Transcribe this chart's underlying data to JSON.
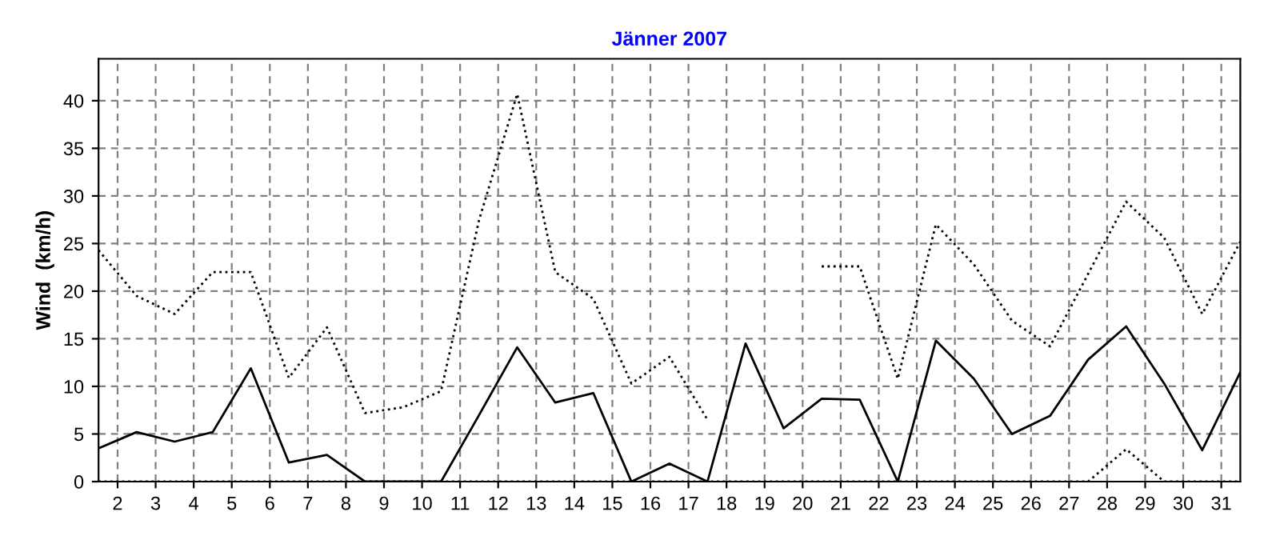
{
  "chart_data": {
    "type": "line",
    "title": "Jänner 2007",
    "ylabel": "Wind  (km/h)",
    "x": [
      1.5,
      2.5,
      3.5,
      4.5,
      5.5,
      6.5,
      7.5,
      8.5,
      9.5,
      10.5,
      11.5,
      12.5,
      13.5,
      14.5,
      15.5,
      16.5,
      17.5,
      18.5,
      19.5,
      20.5,
      21.5,
      22.5,
      23.5,
      24.5,
      25.5,
      26.5,
      27.5,
      28.5,
      29.5,
      30.5,
      31.5
    ],
    "series": [
      {
        "color": "#000000",
        "line_style": "dotted",
        "values": [
          24.3,
          19.5,
          17.6,
          22.0,
          22.0,
          10.9,
          16.2,
          7.2,
          7.8,
          9.5,
          27.5,
          40.7,
          22.0,
          19.2,
          10.3,
          13.1,
          6.5,
          null,
          null,
          22.6,
          22.6,
          10.8,
          27.0,
          22.8,
          16.9,
          14.2,
          21.8,
          29.4,
          25.6,
          17.6,
          25.2
        ]
      },
      {
        "color": "#000000",
        "line_style": "solid",
        "values": [
          3.5,
          5.2,
          4.2,
          5.2,
          11.9,
          2.0,
          2.8,
          0,
          0,
          0,
          7.0,
          14.1,
          8.3,
          9.3,
          0,
          1.9,
          0,
          14.5,
          5.6,
          8.7,
          8.6,
          0,
          14.8,
          10.8,
          5.0,
          6.9,
          12.8,
          16.3,
          10.3,
          3.3,
          11.5
        ]
      },
      {
        "color": "#000000",
        "line_style": "dotted",
        "values": [
          0,
          0,
          0,
          0,
          0,
          0,
          0,
          0,
          0,
          0,
          0,
          0,
          0,
          0,
          0,
          0,
          0,
          0,
          0,
          0,
          0,
          0,
          0,
          0,
          0,
          0,
          0,
          3.4,
          0,
          0,
          0
        ]
      }
    ],
    "xlim": [
      1.5,
      31.5
    ],
    "xticks": [
      2,
      3,
      4,
      5,
      6,
      7,
      8,
      9,
      10,
      11,
      12,
      13,
      14,
      15,
      16,
      17,
      18,
      19,
      20,
      21,
      22,
      23,
      24,
      25,
      26,
      27,
      28,
      29,
      30,
      31
    ],
    "ylim": [
      0,
      44.4
    ],
    "yticks": [
      0,
      5,
      10,
      15,
      20,
      25,
      30,
      35,
      40
    ],
    "grid": true,
    "marker": "none"
  }
}
